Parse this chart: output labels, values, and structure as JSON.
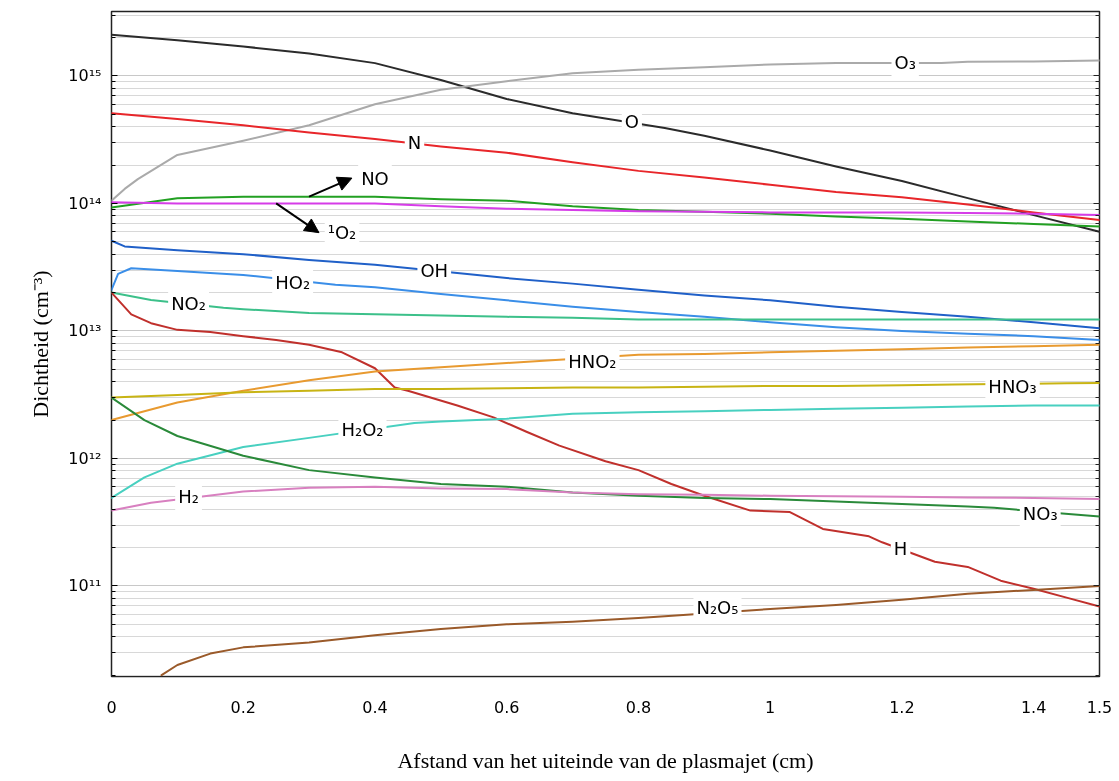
{
  "chart_data": {
    "type": "line",
    "xlabel": "Afstand van het uiteinde van de plasmajet (cm)",
    "ylabel": "Dichtheid (cm⁻³)",
    "xlim": [
      0,
      1.5
    ],
    "ylim": [
      19500000000.0,
      3200000000000000.0
    ],
    "log": "y",
    "grid": "y",
    "xticks": [
      0,
      0.2,
      0.4,
      0.6,
      0.8,
      1,
      1.2,
      1.4,
      1.5
    ],
    "yticks": [
      {
        "value": 100000000000.0,
        "label": "10¹¹"
      },
      {
        "value": 1000000000000.0,
        "label": "10¹²"
      },
      {
        "value": 10000000000000.0,
        "label": "10¹³"
      },
      {
        "value": 100000000000000.0,
        "label": "10¹⁴"
      },
      {
        "value": 1000000000000000.0,
        "label": "10¹⁵"
      }
    ],
    "series": [
      {
        "color": "#2b2b2b",
        "x": [
          0,
          0.1,
          0.2,
          0.3,
          0.4,
          0.5,
          0.6,
          0.7,
          0.84,
          0.9,
          1.0,
          1.1,
          1.2,
          1.3,
          1.4,
          1.5
        ],
        "values": [
          2100000000000000.0,
          1900000000000000.0,
          1700000000000000.0,
          1500000000000000.0,
          1260000000000000.0,
          930000000000000.0,
          660000000000000.0,
          510000000000000.0,
          390000000000000.0,
          340000000000000.0,
          260000000000000.0,
          195000000000000.0,
          150000000000000.0,
          110000000000000.0,
          81000000000000.0,
          60000000000000.0
        ]
      },
      {
        "color": "#aaaaaa",
        "x": [
          0,
          0.02,
          0.04,
          0.1,
          0.2,
          0.3,
          0.4,
          0.5,
          0.6,
          0.7,
          0.8,
          0.9,
          1.0,
          1.1,
          1.26,
          1.3,
          1.4,
          1.5
        ],
        "values": [
          105000000000000.0,
          130000000000000.0,
          155000000000000.0,
          240000000000000.0,
          310000000000000.0,
          410000000000000.0,
          600000000000000.0,
          780000000000000.0,
          910000000000000.0,
          1050000000000000.0,
          1120000000000000.0,
          1170000000000000.0,
          1230000000000000.0,
          1260000000000000.0,
          1260000000000000.0,
          1290000000000000.0,
          1300000000000000.0,
          1320000000000000.0
        ]
      },
      {
        "color": "#e8262a",
        "x": [
          0,
          0.1,
          0.2,
          0.3,
          0.4,
          0.5,
          0.6,
          0.7,
          0.8,
          0.9,
          1.0,
          1.1,
          1.2,
          1.3,
          1.4,
          1.5
        ],
        "values": [
          510000000000000.0,
          460000000000000.0,
          410000000000000.0,
          360000000000000.0,
          320000000000000.0,
          280000000000000.0,
          250000000000000.0,
          210000000000000.0,
          180000000000000.0,
          160000000000000.0,
          140000000000000.0,
          123000000000000.0,
          112000000000000.0,
          98000000000000.0,
          85000000000000.0,
          74000000000000.0
        ]
      },
      {
        "color": "#22a022",
        "x": [
          0,
          0.1,
          0.2,
          0.3,
          0.4,
          0.5,
          0.6,
          0.7,
          0.8,
          0.9,
          1.0,
          1.1,
          1.2,
          1.3,
          1.4,
          1.5
        ],
        "values": [
          93000000000000.0,
          110000000000000.0,
          113000000000000.0,
          113000000000000.0,
          113000000000000.0,
          108000000000000.0,
          105000000000000.0,
          95000000000000.0,
          89000000000000.0,
          86000000000000.0,
          83000000000000.0,
          79000000000000.0,
          76000000000000.0,
          72000000000000.0,
          69000000000000.0,
          66000000000000.0
        ]
      },
      {
        "color": "#d63ce8",
        "x": [
          0,
          0.1,
          0.2,
          0.3,
          0.4,
          0.5,
          0.6,
          0.7,
          0.8,
          0.9,
          1.0,
          1.1,
          1.2,
          1.3,
          1.4,
          1.5
        ],
        "values": [
          102000000000000.0,
          100000000000000.0,
          100000000000000.0,
          100000000000000.0,
          100000000000000.0,
          95000000000000.0,
          91000000000000.0,
          89000000000000.0,
          87000000000000.0,
          86000000000000.0,
          85000000000000.0,
          85000000000000.0,
          85000000000000.0,
          84000000000000.0,
          83000000000000.0,
          81000000000000.0
        ]
      },
      {
        "color": "#2060c8",
        "x": [
          0,
          0.02,
          0.1,
          0.2,
          0.3,
          0.4,
          0.54,
          0.6,
          0.7,
          0.8,
          0.9,
          1.0,
          1.1,
          1.2,
          1.3,
          1.4,
          1.5
        ],
        "values": [
          51000000000000.0,
          46000000000000.0,
          43000000000000.0,
          40000000000000.0,
          36000000000000.0,
          33000000000000.0,
          28000000000000.0,
          26000000000000.0,
          23500000000000.0,
          21000000000000.0,
          19000000000000.0,
          17400000000000.0,
          15500000000000.0,
          14100000000000.0,
          12900000000000.0,
          11700000000000.0,
          10500000000000.0
        ]
      },
      {
        "color": "#3a8ee8",
        "x": [
          0,
          0.01,
          0.03,
          0.1,
          0.2,
          0.34,
          0.4,
          0.5,
          0.6,
          0.7,
          0.8,
          0.9,
          1.0,
          1.1,
          1.2,
          1.3,
          1.4,
          1.5
        ],
        "values": [
          21000000000000.0,
          28000000000000.0,
          31000000000000.0,
          29500000000000.0,
          27500000000000.0,
          23000000000000.0,
          22000000000000.0,
          19500000000000.0,
          17400000000000.0,
          15500000000000.0,
          14100000000000.0,
          12900000000000.0,
          11700000000000.0,
          10700000000000.0,
          10000000000000.0,
          9500000000000.0,
          9100000000000.0,
          8500000000000.0
        ]
      },
      {
        "color": "#3cc08a",
        "x": [
          0,
          0.06,
          0.17,
          0.2,
          0.3,
          0.4,
          0.5,
          0.6,
          0.7,
          0.8,
          0.9,
          1.0,
          1.1,
          1.2,
          1.3,
          1.4,
          1.5
        ],
        "values": [
          20000000000000.0,
          17500000000000.0,
          15200000000000.0,
          14800000000000.0,
          13800000000000.0,
          13500000000000.0,
          13200000000000.0,
          12900000000000.0,
          12700000000000.0,
          12300000000000.0,
          12300000000000.0,
          12300000000000.0,
          12300000000000.0,
          12300000000000.0,
          12300000000000.0,
          12300000000000.0,
          12300000000000.0
        ]
      },
      {
        "color": "#c0302c",
        "x": [
          0,
          0.03,
          0.06,
          0.1,
          0.15,
          0.2,
          0.25,
          0.3,
          0.35,
          0.4,
          0.43,
          0.45,
          0.525,
          0.58,
          0.63,
          0.68,
          0.75,
          0.8,
          0.85,
          0.9,
          0.97,
          1.03,
          1.08,
          1.15,
          1.17,
          1.25,
          1.3,
          1.35,
          1.4,
          1.45,
          1.5
        ],
        "values": [
          20000000000000.0,
          13500000000000.0,
          11500000000000.0,
          10200000000000.0,
          9800000000000.0,
          9100000000000.0,
          8500000000000.0,
          7800000000000.0,
          6800000000000.0,
          5100000000000.0,
          3600000000000.0,
          3400000000000.0,
          2600000000000.0,
          2100000000000.0,
          1620000000000.0,
          1260000000000.0,
          950000000000.0,
          810000000000.0,
          630000000000.0,
          510000000000.0,
          390000000000.0,
          380000000000.0,
          280000000000.0,
          245000000000.0,
          220000000000.0,
          155000000000.0,
          141000000000.0,
          110000000000.0,
          95000000000.0,
          81000000000.0,
          69000000000.0
        ]
      },
      {
        "color": "#e89a30",
        "x": [
          0,
          0.1,
          0.2,
          0.3,
          0.4,
          0.5,
          0.6,
          0.65,
          0.8,
          0.9,
          1.0,
          1.1,
          1.2,
          1.3,
          1.4,
          1.5
        ],
        "values": [
          2000000000000.0,
          2750000000000.0,
          3400000000000.0,
          4100000000000.0,
          4800000000000.0,
          5200000000000.0,
          5600000000000.0,
          5800000000000.0,
          6500000000000.0,
          6600000000000.0,
          6800000000000.0,
          7000000000000.0,
          7200000000000.0,
          7400000000000.0,
          7600000000000.0,
          7800000000000.0
        ]
      },
      {
        "color": "#c8b414",
        "x": [
          0,
          0.1,
          0.2,
          0.3,
          0.4,
          0.5,
          0.6,
          0.7,
          0.8,
          0.9,
          1.0,
          1.1,
          1.2,
          1.28,
          1.45,
          1.5
        ],
        "values": [
          3000000000000.0,
          3150000000000.0,
          3300000000000.0,
          3400000000000.0,
          3500000000000.0,
          3500000000000.0,
          3550000000000.0,
          3600000000000.0,
          3600000000000.0,
          3650000000000.0,
          3700000000000.0,
          3700000000000.0,
          3750000000000.0,
          3800000000000.0,
          3880000000000.0,
          3900000000000.0
        ]
      },
      {
        "color": "#48d0c0",
        "x": [
          0,
          0.05,
          0.1,
          0.2,
          0.3,
          0.46,
          0.5,
          0.6,
          0.7,
          0.8,
          0.9,
          1.0,
          1.1,
          1.2,
          1.3,
          1.4,
          1.5
        ],
        "values": [
          490000000000.0,
          710000000000.0,
          910000000000.0,
          1230000000000.0,
          1450000000000.0,
          1900000000000.0,
          1950000000000.0,
          2050000000000.0,
          2240000000000.0,
          2300000000000.0,
          2350000000000.0,
          2400000000000.0,
          2450000000000.0,
          2500000000000.0,
          2550000000000.0,
          2600000000000.0,
          2600000000000.0
        ]
      },
      {
        "color": "#2a8a3a",
        "x": [
          0,
          0.05,
          0.1,
          0.2,
          0.3,
          0.4,
          0.5,
          0.6,
          0.7,
          0.8,
          0.9,
          1.0,
          1.1,
          1.2,
          1.3,
          1.34,
          1.5
        ],
        "values": [
          3000000000000.0,
          2000000000000.0,
          1500000000000.0,
          1050000000000.0,
          810000000000.0,
          710000000000.0,
          630000000000.0,
          600000000000.0,
          540000000000.0,
          510000000000.0,
          490000000000.0,
          480000000000.0,
          460000000000.0,
          440000000000.0,
          420000000000.0,
          410000000000.0,
          350000000000.0
        ]
      },
      {
        "color": "#d880c0",
        "x": [
          0,
          0.06,
          0.2,
          0.3,
          0.4,
          0.5,
          0.6,
          0.7,
          0.8,
          0.9,
          1.0,
          1.1,
          1.2,
          1.3,
          1.4,
          1.5
        ],
        "values": [
          390000000000.0,
          450000000000.0,
          550000000000.0,
          590000000000.0,
          600000000000.0,
          580000000000.0,
          575000000000.0,
          540000000000.0,
          525000000000.0,
          520000000000.0,
          510000000000.0,
          505000000000.0,
          500000000000.0,
          495000000000.0,
          490000000000.0,
          480000000000.0
        ]
      },
      {
        "color": "#9a5a2a",
        "x": [
          0.076,
          0.1,
          0.15,
          0.2,
          0.3,
          0.4,
          0.5,
          0.6,
          0.7,
          0.8,
          0.84,
          1.0,
          1.1,
          1.2,
          1.3,
          1.4,
          1.5
        ],
        "values": [
          20000000000.0,
          24000000000.0,
          29500000000.0,
          33000000000.0,
          36000000000.0,
          41000000000.0,
          46000000000.0,
          50000000000.0,
          52500000000.0,
          56000000000.0,
          58000000000.0,
          66000000000.0,
          71000000000.0,
          78000000000.0,
          87000000000.0,
          93000000000.0,
          100000000000.0
        ]
      }
    ],
    "annotations": [
      {
        "text": "O",
        "x": 0.79,
        "y": 440000000000000.0
      },
      {
        "text": "O₃",
        "x": 1.205,
        "y": 1270000000000000.0
      },
      {
        "text": "N",
        "x": 0.46,
        "y": 300000000000000.0
      },
      {
        "text": "NO",
        "x": 0.4,
        "y": 158000000000000.0
      },
      {
        "text": "¹O₂",
        "x": 0.35,
        "y": 59000000000000.0
      },
      {
        "text": "OH",
        "x": 0.49,
        "y": 30000000000000.0
      },
      {
        "text": "HO₂",
        "x": 0.275,
        "y": 24000000000000.0
      },
      {
        "text": "NO₂",
        "x": 0.117,
        "y": 16500000000000.0
      },
      {
        "text": "H",
        "x": 1.198,
        "y": 195000000000.0
      },
      {
        "text": "HNO₂",
        "x": 0.73,
        "y": 5800000000000.0
      },
      {
        "text": "HNO₃",
        "x": 1.368,
        "y": 3700000000000.0
      },
      {
        "text": "H₂O₂",
        "x": 0.381,
        "y": 1700000000000.0
      },
      {
        "text": "NO₃",
        "x": 1.41,
        "y": 370000000000.0
      },
      {
        "text": "H₂",
        "x": 0.117,
        "y": 500000000000.0
      },
      {
        "text": "N₂O₅",
        "x": 0.92,
        "y": 68000000000.0
      }
    ]
  }
}
